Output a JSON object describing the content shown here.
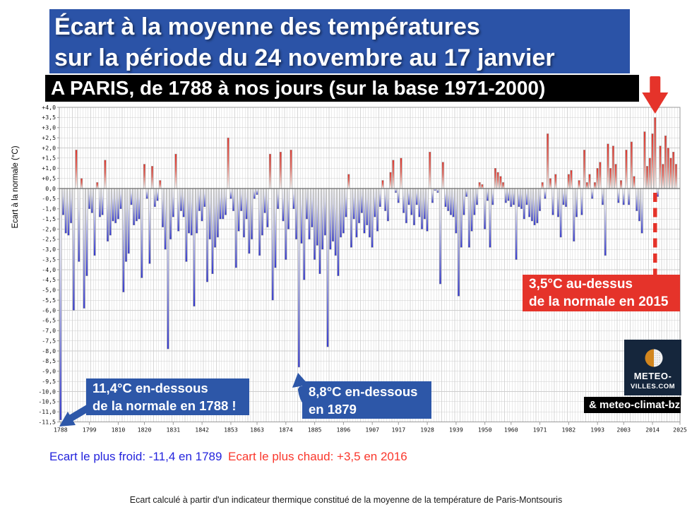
{
  "header": {
    "title_line1": "Écart à la moyenne des températures",
    "title_line2": "sur la période du 24 novembre au 17 janvier",
    "subtitle": "A PARIS, de 1788 à nos jours (sur la base 1971-2000)"
  },
  "annotations": {
    "above_2015": {
      "line1": "3,5°C au-dessus",
      "line2": "de la normale en 2015"
    },
    "below_1788": {
      "line1": "11,4°C en-dessous",
      "line2": "de la normale en 1788 !"
    },
    "below_1879": {
      "line1": "8,8°C en-dessous",
      "line2": "en 1879"
    }
  },
  "logo": {
    "line1": "METEO-",
    "line2": "VILLES.COM",
    "credit": "& meteo-climat-bzh"
  },
  "captions": {
    "cold": "Ecart le plus froid: -11,4 en 1789",
    "warm": "Ecart le plus chaud: +3,5 en 2016"
  },
  "footer": "Ecart calculé à partir d'un indicateur thermique constitué de la moyenne de la température de Paris-Montsouris",
  "colors": {
    "banner_blue": "#2b53a7",
    "box_blue": "#2d57a8",
    "box_red": "#e5332a",
    "bar_red_tip": "#e2332a",
    "bar_blue_tip": "#3136d2",
    "caption_blue": "#2424dd",
    "caption_red": "#fa372c",
    "logo_navy": "#15263c",
    "logo_orange": "#d2861e"
  },
  "chart_data": {
    "type": "bar",
    "title": "Écart à la moyenne des températures sur la période du 24 novembre au 17 janvier",
    "subtitle": "A PARIS, de 1788 à nos jours (sur la base 1971-2000)",
    "ylabel": "Ecart à la normale (°C)",
    "ylim": [
      -11.5,
      4.0
    ],
    "ytick_step": 0.5,
    "grid": true,
    "legend": "none",
    "start_year": 1788,
    "x_axis_end": 2025,
    "highlight_year": 2015,
    "xtick_labels": [
      "1788",
      "1799",
      "1810",
      "1820",
      "1831",
      "1842",
      "1853",
      "1863",
      "1874",
      "1885",
      "1896",
      "1907",
      "1917",
      "1928",
      "1939",
      "1950",
      "1960",
      "1971",
      "1982",
      "1993",
      "2003",
      "2014",
      "2025"
    ],
    "values": [
      -11.4,
      -1.3,
      -2.2,
      -2.3,
      -1.7,
      -6.0,
      1.9,
      -3.6,
      0.5,
      -5.9,
      -4.3,
      -1.0,
      -1.2,
      -3.3,
      0.3,
      -1.4,
      -1.3,
      1.4,
      -2.6,
      -2.3,
      -1.6,
      -1.7,
      -1.5,
      -1.0,
      -5.1,
      -3.6,
      -3.2,
      -0.8,
      -1.8,
      -1.6,
      -1.5,
      -4.4,
      1.2,
      -0.5,
      -3.7,
      1.1,
      -0.9,
      -0.6,
      0.4,
      -1.9,
      -3.0,
      -7.9,
      -2.5,
      -1.4,
      1.7,
      -2.1,
      -1.1,
      -1.4,
      -3.6,
      -2.2,
      -2.3,
      -5.8,
      -2.2,
      -1.1,
      -1.6,
      -0.9,
      -4.6,
      -2.5,
      -4.2,
      -2.9,
      -2.4,
      -1.5,
      -1.5,
      -1.3,
      2.5,
      -0.5,
      -1.1,
      -3.9,
      -2.1,
      -1.1,
      -2.4,
      -1.5,
      -3.2,
      -2.5,
      -0.5,
      -0.3,
      -3.3,
      -2.3,
      -1.2,
      -1.9,
      1.7,
      -5.5,
      -3.9,
      -1.0,
      1.8,
      -1.6,
      -3.5,
      -2.0,
      1.9,
      -1.0,
      -2.5,
      -8.8,
      -2.7,
      -4.5,
      -1.5,
      -2.5,
      -1.9,
      -3.5,
      -2.8,
      -4.2,
      -3.0,
      -2.3,
      -7.8,
      -3.0,
      -2.6,
      -3.3,
      -4.3,
      -2.4,
      -2.2,
      -1.4,
      0.7,
      -2.9,
      -1.5,
      -2.4,
      -1.7,
      -1.2,
      -2.2,
      -1.8,
      -2.4,
      -2.9,
      -1.4,
      -2.1,
      -0.9,
      0.4,
      -1.1,
      -1.6,
      0.8,
      1.4,
      -0.2,
      -0.7,
      1.5,
      -1.2,
      -1.7,
      -0.8,
      -1.3,
      -1.8,
      -0.8,
      -1.4,
      -2.0,
      -1.5,
      -2.1,
      1.8,
      -0.7,
      -0.1,
      -0.2,
      -4.7,
      1.3,
      -0.9,
      -1.1,
      -1.3,
      -1.4,
      -2.2,
      -5.3,
      -2.9,
      -1.3,
      -0.4,
      -2.9,
      -2.1,
      -1.3,
      -0.8,
      0.3,
      0.2,
      -2.0,
      -0.6,
      -2.9,
      -0.8,
      1.0,
      0.8,
      0.6,
      0.3,
      -0.7,
      -0.6,
      -0.9,
      -0.8,
      -3.5,
      -0.9,
      -1.0,
      -1.5,
      -0.8,
      -1.4,
      -1.6,
      -1.8,
      -1.7,
      -1.1,
      0.3,
      -0.5,
      2.7,
      0.5,
      -1.3,
      0.7,
      -1.4,
      -2.4,
      -0.8,
      -0.9,
      0.7,
      0.9,
      -2.6,
      -1.4,
      0.4,
      -1.3,
      1.9,
      0.3,
      0.7,
      -0.5,
      0.3,
      1.0,
      1.3,
      -0.8,
      -3.3,
      2.2,
      1.0,
      2.1,
      1.2,
      -0.7,
      0.4,
      -0.8,
      1.9,
      -0.8,
      2.3,
      0.6,
      -1.1,
      -1.6,
      -2.2,
      2.8,
      1.1,
      1.5,
      2.7,
      3.5,
      -0.4,
      2.1,
      1.2,
      2.6,
      2.0,
      1.5,
      1.8,
      1.2
    ]
  }
}
